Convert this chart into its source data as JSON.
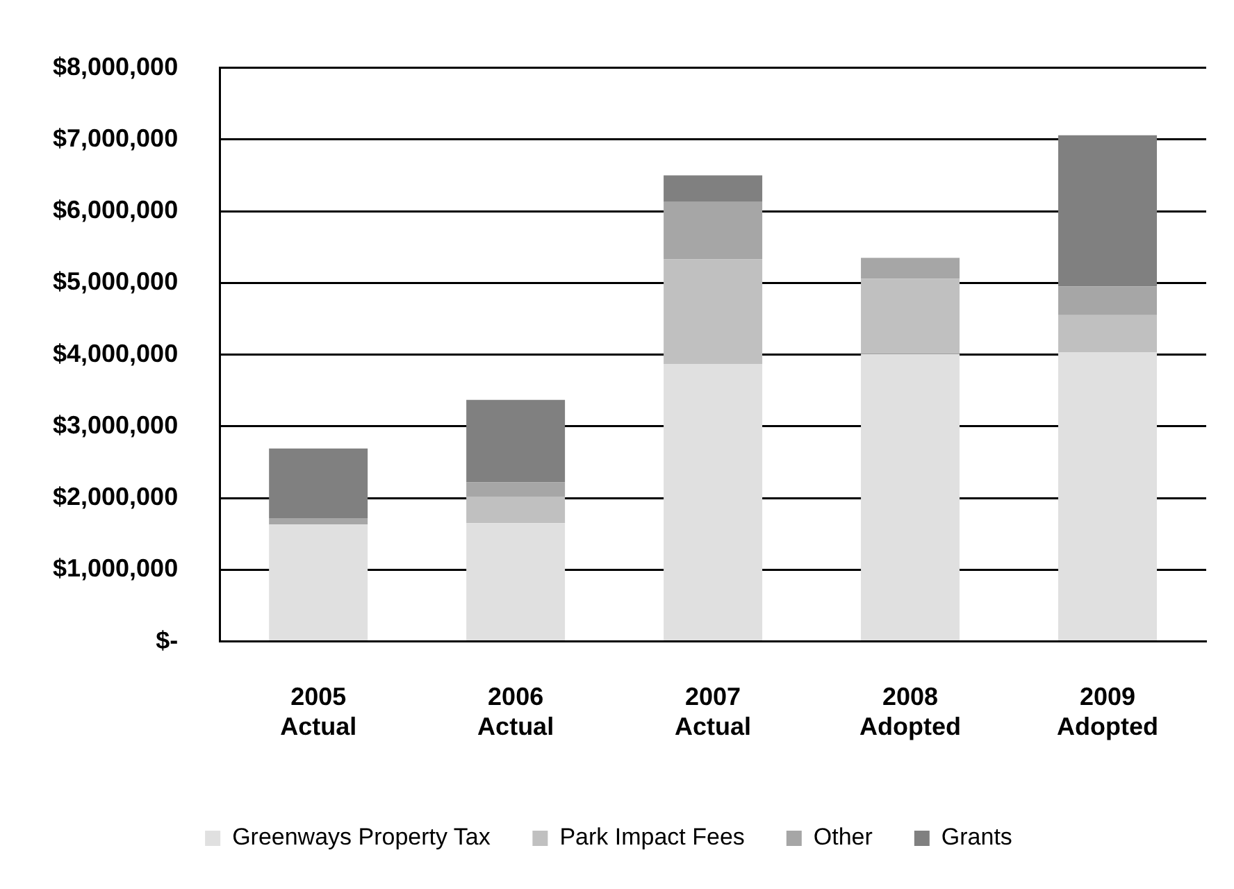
{
  "chart_data": {
    "type": "bar",
    "stacked": true,
    "categories": [
      "2005 Actual",
      "2006 Actual",
      "2007 Actual",
      "2008 Adopted",
      "2009 Adopted"
    ],
    "series": [
      {
        "name": "Greenways Property Tax",
        "color": "#e0e0e0",
        "values": [
          1630000,
          1650000,
          3870000,
          4010000,
          4030000
        ]
      },
      {
        "name": "Park Impact Fees",
        "color": "#c0c0c0",
        "values": [
          0,
          370000,
          1460000,
          1050000,
          520000
        ]
      },
      {
        "name": "Other",
        "color": "#a6a6a6",
        "values": [
          90000,
          200000,
          800000,
          290000,
          400000
        ]
      },
      {
        "name": "Grants",
        "color": "#808080",
        "values": [
          970000,
          1150000,
          370000,
          0,
          2110000
        ]
      }
    ],
    "ylim": [
      0,
      8000000
    ],
    "yticks": [
      {
        "value": 0,
        "label": "$-"
      },
      {
        "value": 1000000,
        "label": "$1,000,000"
      },
      {
        "value": 2000000,
        "label": "$2,000,000"
      },
      {
        "value": 3000000,
        "label": "$3,000,000"
      },
      {
        "value": 4000000,
        "label": "$4,000,000"
      },
      {
        "value": 5000000,
        "label": "$5,000,000"
      },
      {
        "value": 6000000,
        "label": "$6,000,000"
      },
      {
        "value": 7000000,
        "label": "$7,000,000"
      },
      {
        "value": 8000000,
        "label": "$8,000,000"
      }
    ],
    "grid": "y",
    "legend": "bottom"
  }
}
